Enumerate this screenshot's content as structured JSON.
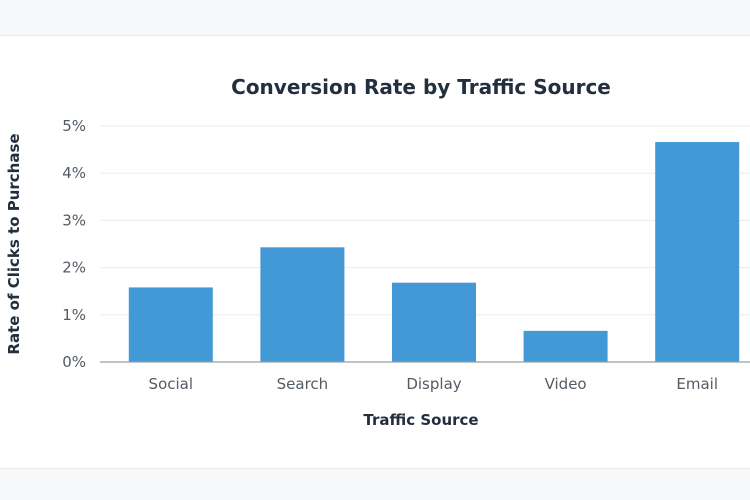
{
  "chart_data": {
    "type": "bar",
    "title": "Conversion Rate by Traffic Source",
    "xlabel": "Traffic Source",
    "ylabel": "Rate of Clicks to Purchase",
    "categories": [
      "Social",
      "Search",
      "Display",
      "Video",
      "Email"
    ],
    "values": [
      1.58,
      2.43,
      1.68,
      0.66,
      4.66
    ],
    "value_unit": "%",
    "ylim": [
      0,
      5
    ],
    "yticks": [
      0,
      1,
      2,
      3,
      4,
      5
    ],
    "ytick_labels": [
      "0%",
      "1%",
      "2%",
      "3%",
      "4%",
      "5%"
    ],
    "grid": true,
    "legend": "none",
    "bar_color": "#4299d5"
  }
}
